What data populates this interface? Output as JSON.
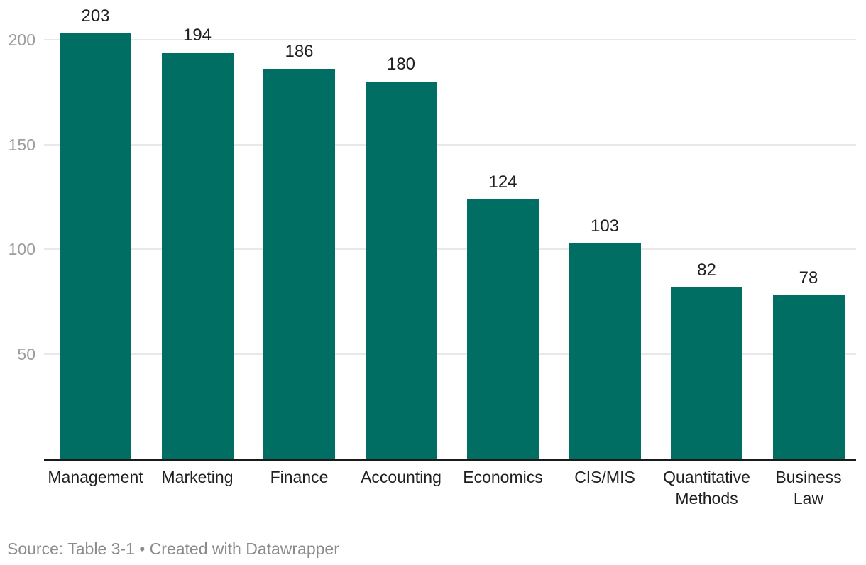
{
  "chart_data": {
    "type": "bar",
    "title": "",
    "categories": [
      "Management",
      "Marketing",
      "Finance",
      "Accounting",
      "Economics",
      "CIS/MIS",
      "Quantitative Methods",
      "Business Law"
    ],
    "x_tick_labels": [
      "Management",
      "Marketing",
      "Finance",
      "Accounting",
      "Economics",
      "CIS/MIS",
      "Quantitative\nMethods",
      "Business\nLaw"
    ],
    "values": [
      203,
      194,
      186,
      180,
      124,
      103,
      82,
      78
    ],
    "value_labels": [
      "203",
      "194",
      "186",
      "180",
      "124",
      "103",
      "82",
      "78"
    ],
    "y_ticks": [
      50,
      100,
      150,
      200
    ],
    "ylim": [
      0,
      219
    ],
    "grid": true,
    "legend": "none",
    "orientation": "vertical"
  },
  "colors": {
    "bar": "#006e63",
    "gridline": "#e8e8e8",
    "axis_line": "#1a1a1a",
    "y_tick_text": "#9d9d9d",
    "value_text": "#1f1f1f",
    "category_text": "#1f1f1f",
    "source_text": "#8b8b8b",
    "background": "#ffffff"
  },
  "footer": {
    "source_line": "Source: Table 3-1 • Created with Datawrapper"
  }
}
